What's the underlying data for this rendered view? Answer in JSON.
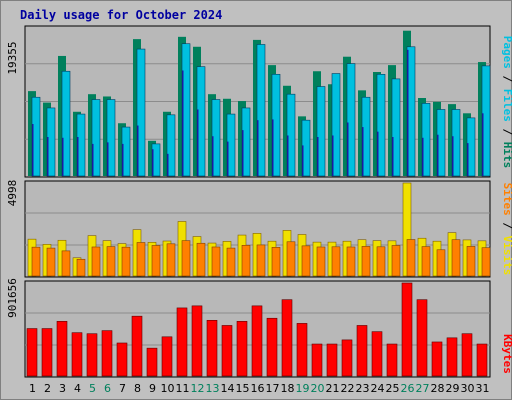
{
  "title": "Daily usage for October 2024",
  "colors": {
    "background": "#c0c0c0",
    "plot_bg": "#b8b8b8",
    "title": "#0000a0",
    "hits": "#00805c",
    "files": "#00c0e0",
    "pages": "#00c0e0",
    "visits": "#f0e000",
    "sites": "#ff8000",
    "kbytes": "#ff0000",
    "weekend": "#00805c",
    "weekday": "#000000"
  },
  "legend_top": {
    "pages": "Pages",
    "files": "Files",
    "hits": "Hits",
    "sep": " / "
  },
  "legend_mid": {
    "sites": "Sites",
    "visits": "Visits",
    "sep": " / "
  },
  "legend_bot": {
    "kbytes": "KBytes"
  },
  "ymax": {
    "top": "19355",
    "mid": "4998",
    "bot": "901656"
  },
  "chart_data": [
    {
      "type": "bar",
      "panel": "hits-files-pages",
      "categories": [
        "1",
        "2",
        "3",
        "4",
        "5",
        "6",
        "7",
        "8",
        "9",
        "10",
        "11",
        "12",
        "13",
        "14",
        "15",
        "16",
        "17",
        "18",
        "19",
        "20",
        "21",
        "22",
        "23",
        "24",
        "25",
        "26",
        "27",
        "28",
        "29",
        "30",
        "31"
      ],
      "weekend_days": [
        "5",
        "6",
        "12",
        "13",
        "19",
        "20",
        "26",
        "27"
      ],
      "ylim": [
        0,
        19355
      ],
      "series": [
        {
          "name": "Hits",
          "values": [
            11100,
            9600,
            15700,
            8400,
            10700,
            10400,
            6900,
            17900,
            4600,
            8400,
            18200,
            16900,
            10700,
            10100,
            9800,
            17800,
            14500,
            11800,
            7800,
            13700,
            12000,
            15600,
            11200,
            13600,
            14500,
            19000,
            10200,
            9700,
            9400,
            8200,
            14900
          ]
        },
        {
          "name": "Files",
          "values": [
            10300,
            8900,
            13700,
            8100,
            10000,
            10000,
            6400,
            16600,
            4200,
            8000,
            17300,
            14300,
            10000,
            8100,
            8900,
            17200,
            13300,
            10700,
            7300,
            11700,
            13400,
            14700,
            10300,
            13300,
            12700,
            16900,
            9500,
            8700,
            8700,
            7600,
            14400
          ]
        },
        {
          "name": "Pages",
          "values": [
            6800,
            5100,
            5000,
            5100,
            4200,
            4400,
            4200,
            6600,
            3500,
            2900,
            13800,
            8700,
            5200,
            4500,
            6000,
            7300,
            7400,
            5300,
            4000,
            5100,
            5300,
            7000,
            6400,
            5800,
            5100,
            16500,
            5000,
            5400,
            5200,
            4300,
            8200
          ]
        }
      ]
    },
    {
      "type": "bar",
      "panel": "visits-sites",
      "categories": [
        "1",
        "2",
        "3",
        "4",
        "5",
        "6",
        "7",
        "8",
        "9",
        "10",
        "11",
        "12",
        "13",
        "14",
        "15",
        "16",
        "17",
        "18",
        "19",
        "20",
        "21",
        "22",
        "23",
        "24",
        "25",
        "26",
        "27",
        "28",
        "29",
        "30",
        "31"
      ],
      "ylim": [
        0,
        4998
      ],
      "series": [
        {
          "name": "Visits",
          "values": [
            1980,
            1700,
            1920,
            980,
            2170,
            1900,
            1740,
            2490,
            1810,
            1880,
            2930,
            2120,
            1770,
            1860,
            2200,
            2290,
            1870,
            2450,
            2230,
            1820,
            1820,
            1870,
            1950,
            1900,
            1890,
            4998,
            2030,
            1870,
            2330,
            1940,
            1890
          ]
        },
        {
          "name": "Sites",
          "values": [
            1550,
            1500,
            1350,
            900,
            1560,
            1580,
            1550,
            1800,
            1640,
            1730,
            1900,
            1760,
            1560,
            1500,
            1650,
            1670,
            1540,
            1840,
            1620,
            1560,
            1570,
            1560,
            1590,
            1570,
            1640,
            1960,
            1580,
            1410,
            1950,
            1590,
            1520
          ]
        }
      ]
    },
    {
      "type": "bar",
      "panel": "kbytes",
      "categories": [
        "1",
        "2",
        "3",
        "4",
        "5",
        "6",
        "7",
        "8",
        "9",
        "10",
        "11",
        "12",
        "13",
        "14",
        "15",
        "16",
        "17",
        "18",
        "19",
        "20",
        "21",
        "22",
        "23",
        "24",
        "25",
        "26",
        "27",
        "28",
        "29",
        "30",
        "31"
      ],
      "ylim": [
        0,
        901656
      ],
      "series": [
        {
          "name": "KBytes",
          "values": [
            460000,
            460000,
            530000,
            420000,
            410000,
            440000,
            320000,
            580000,
            270000,
            380000,
            660000,
            680000,
            540000,
            490000,
            530000,
            680000,
            560000,
            740000,
            510000,
            310000,
            310000,
            350000,
            490000,
            430000,
            310000,
            901656,
            740000,
            330000,
            370000,
            410000,
            310000
          ]
        }
      ]
    }
  ]
}
